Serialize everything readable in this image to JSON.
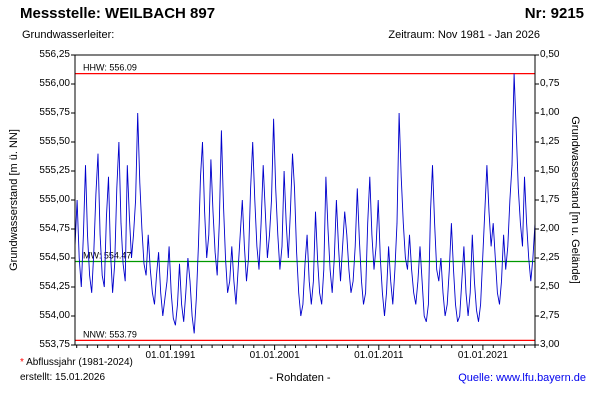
{
  "header": {
    "station_label": "Messstelle: WEILBACH 897",
    "number_label": "Nr: 9215",
    "aquifer_label": "Grundwasserleiter:",
    "period_label": "Zeitraum: Nov 1981 - Jan 2026"
  },
  "footer": {
    "asterisk": "*",
    "note": " Abflussjahr (1981-2024)",
    "created": "erstellt: 15.01.2026",
    "center": "- Rohdaten -",
    "source_prefix": "Quelle: ",
    "source_link": "www.lfu.bayern.de"
  },
  "chart_data": {
    "type": "line",
    "color": "#0000cc",
    "x_start": 1981.833,
    "x_end": 2026.0,
    "ylim_left": [
      553.75,
      556.25
    ],
    "ylim_right": [
      3.0,
      0.5
    ],
    "ylabel_left": "Grundwasserstand [m ü. NN]",
    "ylabel_right": "Grundwasserstand [m u. Gelände]",
    "yticks_left": [
      "556,25",
      "556,00",
      "555,75",
      "555,50",
      "555,25",
      "555,00",
      "554,75",
      "554,50",
      "554,25",
      "554,00",
      "553,75"
    ],
    "yticks_right": [
      "0,50",
      "0,75",
      "1,00",
      "1,25",
      "1,50",
      "1,75",
      "2,00",
      "2,25",
      "2,50",
      "2,75",
      "3,00"
    ],
    "xticks": [
      {
        "year": 1991,
        "label": "01.01.1991"
      },
      {
        "year": 2001,
        "label": "01.01.2001"
      },
      {
        "year": 2011,
        "label": "01.01.2011"
      },
      {
        "year": 2021,
        "label": "01.01.2021"
      }
    ],
    "ref_lines": [
      {
        "name": "HHW",
        "value": 556.09,
        "label": "HHW: 556.09",
        "color": "#ff0000"
      },
      {
        "name": "MW",
        "value": 554.47,
        "label": "MW: 554.47",
        "color": "#009900"
      },
      {
        "name": "NNW",
        "value": 553.79,
        "label": "NNW: 553.79",
        "color": "#ff0000"
      }
    ],
    "values": [
      554.6,
      555.0,
      554.5,
      554.25,
      554.7,
      555.3,
      554.7,
      554.35,
      554.2,
      554.55,
      555.05,
      555.4,
      554.7,
      554.35,
      554.25,
      554.85,
      555.2,
      554.55,
      554.2,
      554.45,
      555.1,
      555.5,
      554.8,
      554.45,
      554.3,
      555.3,
      554.85,
      554.5,
      554.7,
      555.0,
      555.75,
      555.15,
      554.75,
      554.45,
      554.35,
      554.7,
      554.4,
      554.2,
      554.1,
      554.35,
      554.55,
      554.2,
      554.0,
      554.15,
      554.3,
      554.6,
      554.2,
      553.98,
      553.92,
      554.1,
      554.45,
      554.1,
      553.95,
      554.2,
      554.5,
      554.3,
      554.0,
      553.85,
      554.15,
      554.6,
      555.2,
      555.5,
      554.9,
      554.5,
      554.7,
      555.35,
      554.9,
      554.55,
      554.35,
      554.8,
      555.6,
      554.95,
      554.5,
      554.2,
      554.3,
      554.6,
      554.3,
      554.1,
      554.4,
      554.7,
      555.0,
      554.6,
      554.3,
      554.5,
      555.1,
      555.5,
      555.0,
      554.6,
      554.4,
      554.8,
      555.3,
      554.9,
      554.5,
      554.7,
      555.0,
      555.7,
      555.1,
      554.7,
      554.4,
      554.6,
      555.25,
      554.8,
      554.5,
      554.9,
      555.4,
      555.1,
      554.55,
      554.2,
      554.0,
      554.1,
      554.45,
      554.7,
      554.3,
      554.1,
      554.3,
      554.9,
      554.5,
      554.2,
      554.1,
      554.4,
      555.2,
      554.75,
      554.4,
      554.2,
      554.5,
      555.0,
      554.6,
      554.3,
      554.6,
      554.9,
      554.7,
      554.4,
      554.2,
      554.3,
      554.6,
      555.1,
      554.65,
      554.3,
      554.1,
      554.2,
      554.8,
      555.2,
      554.7,
      554.4,
      554.6,
      555.0,
      554.5,
      554.2,
      554.0,
      554.2,
      554.6,
      554.3,
      554.1,
      554.4,
      554.8,
      555.75,
      555.2,
      554.8,
      554.5,
      554.4,
      554.7,
      554.4,
      554.2,
      554.1,
      554.3,
      554.6,
      554.3,
      554.0,
      553.95,
      554.1,
      554.9,
      555.3,
      554.8,
      554.4,
      554.3,
      554.5,
      554.2,
      554.0,
      554.1,
      554.4,
      554.8,
      554.4,
      554.1,
      553.95,
      554.0,
      554.3,
      554.6,
      554.2,
      554.0,
      554.2,
      554.7,
      554.3,
      554.05,
      553.95,
      554.1,
      554.5,
      554.9,
      555.3,
      554.9,
      554.6,
      554.8,
      554.5,
      554.2,
      554.1,
      554.3,
      554.7,
      554.4,
      554.6,
      555.0,
      555.3,
      556.09,
      555.6,
      555.1,
      554.8,
      554.6,
      555.2,
      554.8,
      554.5,
      554.3,
      554.5,
      554.8
    ]
  }
}
